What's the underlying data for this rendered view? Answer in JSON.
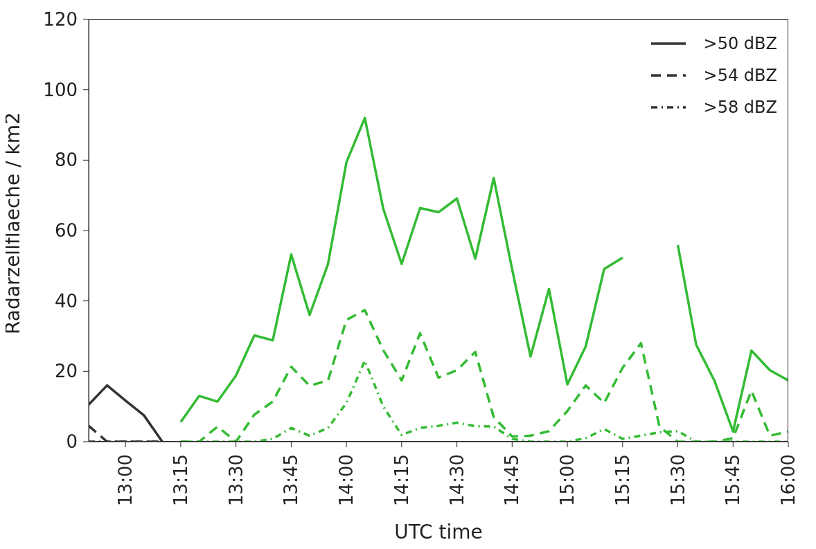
{
  "chart_data": {
    "type": "line",
    "xlabel": "UTC time",
    "ylabel": "Radarzellflaeche / km2",
    "xlim": [
      12.8333,
      16
    ],
    "ylim": [
      0,
      120
    ],
    "xticks": [
      {
        "value": 13,
        "label": "13:00"
      },
      {
        "value": 13.25,
        "label": "13:15"
      },
      {
        "value": 13.5,
        "label": "13:30"
      },
      {
        "value": 13.75,
        "label": "13:45"
      },
      {
        "value": 14,
        "label": "14:00"
      },
      {
        "value": 14.25,
        "label": "14:15"
      },
      {
        "value": 14.5,
        "label": "14:30"
      },
      {
        "value": 14.75,
        "label": "14:45"
      },
      {
        "value": 15,
        "label": "15:00"
      },
      {
        "value": 15.25,
        "label": "15:15"
      },
      {
        "value": 15.5,
        "label": "15:30"
      },
      {
        "value": 15.75,
        "label": "15:45"
      },
      {
        "value": 16,
        "label": "16:00"
      }
    ],
    "yticks": [
      0,
      20,
      40,
      60,
      80,
      100,
      120
    ],
    "legend": "top right",
    "marker": "none",
    "series": [
      {
        "name": ">50 dBZ",
        "color": "#333333",
        "line_style": "solid",
        "x": [
          12.8333,
          12.9167,
          13,
          13.0833,
          13.1667
        ],
        "values": [
          10.5,
          16,
          11.7,
          7.5,
          0
        ]
      },
      {
        "name": ">54 dBZ",
        "color": "#333333",
        "line_style": "dashed",
        "x": [
          12.8333,
          12.9167,
          13,
          13.0833,
          13.1667
        ],
        "values": [
          4.5,
          0,
          0,
          0,
          0
        ]
      },
      {
        "name": ">58 dBZ",
        "color": "#333333",
        "line_style": "dotted",
        "x": [
          12.8333,
          12.9167,
          13,
          13.0833,
          13.1667
        ],
        "values": [
          0,
          0,
          0,
          0,
          0
        ]
      },
      {
        "color": "#33bb33",
        "line_style": "solid",
        "x": [
          13.25,
          13.3333,
          13.4167,
          13.5,
          13.5833,
          13.6667,
          13.75,
          13.8333,
          13.9167,
          14,
          14.0833,
          14.1667,
          14.25,
          14.3333,
          14.4167,
          14.5,
          14.5833,
          14.6667,
          14.75,
          14.8333,
          14.9167,
          15,
          15.0833,
          15.1667,
          15.25,
          15.3333,
          15.4167,
          15.5,
          15.5833,
          15.6667,
          15.75,
          15.8333,
          15.9167,
          16
        ],
        "values": [
          5.6,
          13,
          11.4,
          18.8,
          30.2,
          28.8,
          53.2,
          36,
          50.5,
          79.4,
          92,
          66.2,
          50.5,
          66.4,
          65.2,
          69.1,
          52,
          74.9,
          49,
          24.2,
          43.4,
          16.3,
          27.1,
          49.1,
          52.3,
          null,
          null,
          55.9,
          27.5,
          17.2,
          2.9,
          25.9,
          20.3,
          17.4
        ]
      },
      {
        "color": "#33bb33",
        "line_style": "dashed",
        "x": [
          13.25,
          13.3333,
          13.4167,
          13.5,
          13.5833,
          13.6667,
          13.75,
          13.8333,
          13.9167,
          14,
          14.0833,
          14.1667,
          14.25,
          14.3333,
          14.4167,
          14.5,
          14.5833,
          14.6667,
          14.75,
          14.8333,
          14.9167,
          15,
          15.0833,
          15.1667,
          15.25,
          15.3333,
          15.4167,
          15.5,
          15.5833,
          15.6667,
          15.75,
          15.8333,
          15.9167,
          16
        ],
        "values": [
          0,
          0,
          4.3,
          0,
          7.7,
          11.4,
          21.3,
          15.9,
          17.4,
          34.6,
          37.4,
          26,
          17.4,
          30.8,
          18.2,
          20.3,
          25.5,
          7,
          1.5,
          1.7,
          3,
          8.7,
          16,
          11,
          21,
          28,
          4.3,
          0,
          0,
          0,
          1,
          14.5,
          1.7,
          2.9
        ]
      },
      {
        "color": "#33bb33",
        "line_style": "dotted",
        "x": [
          13.25,
          13.3333,
          13.4167,
          13.5,
          13.5833,
          13.6667,
          13.75,
          13.8333,
          13.9167,
          14,
          14.0833,
          14.1667,
          14.25,
          14.3333,
          14.4167,
          14.5,
          14.5833,
          14.6667,
          14.75,
          14.8333,
          14.9167,
          15,
          15.0833,
          15.1667,
          15.25,
          15.3333,
          15.4167,
          15.5,
          15.5833,
          15.6667,
          15.75,
          15.8333,
          15.9167,
          16
        ],
        "values": [
          0,
          0,
          0,
          0,
          0,
          0.8,
          3.9,
          1.7,
          3.9,
          11,
          23,
          10,
          1.9,
          3.9,
          4.5,
          5.4,
          4.4,
          4.3,
          0.8,
          0,
          0,
          0,
          1,
          3.6,
          0.8,
          1.7,
          2.7,
          3,
          0,
          0,
          0,
          0,
          0,
          0
        ]
      }
    ]
  }
}
